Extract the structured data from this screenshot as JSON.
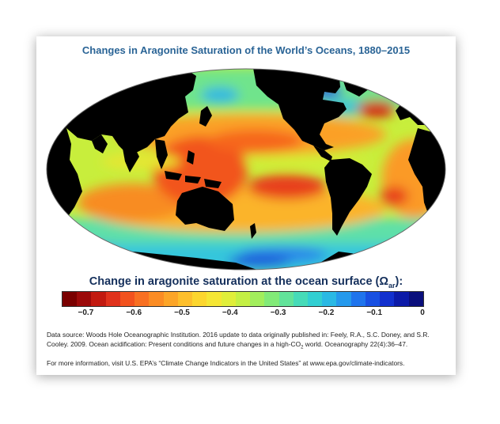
{
  "title": "Changes in Aragonite Saturation of the World’s Oceans, 1880–2015",
  "legend": {
    "title_main": "Change in aragonite saturation at the ocean surface (Ω",
    "title_sub": "ar",
    "title_end": "):",
    "colors": [
      "#7a0000",
      "#9c0a0a",
      "#c21a10",
      "#e0321c",
      "#f2521e",
      "#f87022",
      "#fb8c24",
      "#fca528",
      "#fdbf2c",
      "#fcd62e",
      "#f5e634",
      "#e0ee3a",
      "#c4f044",
      "#a2ee5c",
      "#82ea78",
      "#62e39a",
      "#46dbb8",
      "#32cfd2",
      "#2ab9e4",
      "#2599ec",
      "#1f74ec",
      "#1850e2",
      "#1230ce",
      "#0c1aa8",
      "#0a0f7c"
    ],
    "ticks": [
      "−0.7",
      "−0.6",
      "−0.5",
      "−0.4",
      "−0.3",
      "−0.2",
      "−0.1",
      "0"
    ],
    "range": [
      -0.75,
      0.0
    ]
  },
  "source": {
    "line1": "Data source: Woods Hole Oceanographic Institution. 2016 update to data originally published in: Feely, R.A., S.C. Doney, and S.R.",
    "line2_a": "Cooley. 2009. Ocean acidification: Present conditions and future changes in a high-CO",
    "line2_sub": "2",
    "line2_b": " world. Oceanography 22(4):36–47."
  },
  "more_info": "For more information, visit U.S. EPA’s “Climate Change Indicators in the United States” at www.epa.gov/climate-indicators."
}
